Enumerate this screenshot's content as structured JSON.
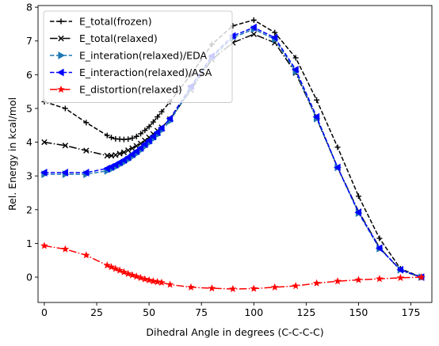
{
  "chart_data": {
    "type": "line",
    "title": "",
    "xlabel": "Dihedral Angle in degrees (C-C-C-C)",
    "ylabel": "Rel. Energy in kcal/mol",
    "xlim": [
      -3,
      185
    ],
    "ylim": [
      -0.75,
      8.05
    ],
    "xticks": [
      0,
      25,
      50,
      75,
      100,
      125,
      150,
      175
    ],
    "yticks": [
      0,
      1,
      2,
      3,
      4,
      5,
      6,
      7,
      8
    ],
    "grid": false,
    "legend_position": "upper-left",
    "series": [
      {
        "name": "E_total(frozen)",
        "color": "#000000",
        "linestyle": "dashed",
        "marker": "plus",
        "x": [
          0,
          10,
          20,
          30,
          32,
          34,
          36,
          38,
          40,
          42,
          44,
          46,
          48,
          50,
          52,
          54,
          56,
          60,
          70,
          80,
          90,
          100,
          110,
          120,
          130,
          140,
          150,
          160,
          170,
          180
        ],
        "y": [
          5.2,
          5.0,
          4.58,
          4.2,
          4.14,
          4.1,
          4.09,
          4.08,
          4.09,
          4.12,
          4.17,
          4.25,
          4.35,
          4.46,
          4.6,
          4.75,
          4.9,
          5.2,
          6.0,
          6.9,
          7.45,
          7.62,
          7.25,
          6.5,
          5.25,
          3.85,
          2.4,
          1.15,
          0.25,
          0.0
        ]
      },
      {
        "name": "E_total(relaxed)",
        "color": "#000000",
        "linestyle": "dashdot",
        "marker": "x",
        "x": [
          0,
          10,
          20,
          30,
          32,
          34,
          36,
          38,
          40,
          42,
          44,
          46,
          48,
          50,
          52,
          54,
          56,
          60,
          70,
          80,
          90,
          100,
          110,
          120,
          130,
          140,
          150,
          160,
          170,
          180
        ],
        "y": [
          4.0,
          3.9,
          3.75,
          3.6,
          3.6,
          3.62,
          3.66,
          3.7,
          3.76,
          3.82,
          3.89,
          3.96,
          4.05,
          4.14,
          4.24,
          4.34,
          4.44,
          4.68,
          5.55,
          6.45,
          6.95,
          7.2,
          6.95,
          6.05,
          4.7,
          3.25,
          1.95,
          0.88,
          0.2,
          0.0
        ]
      },
      {
        "name": "E_interation(relaxed)/EDA",
        "color": "#1f77b4",
        "linestyle": "dashed",
        "marker": "triangle-right",
        "x": [
          0,
          10,
          20,
          30,
          32,
          34,
          36,
          38,
          40,
          42,
          44,
          46,
          48,
          50,
          52,
          54,
          56,
          60,
          70,
          80,
          90,
          100,
          110,
          120,
          130,
          140,
          150,
          160,
          170,
          180
        ],
        "y": [
          3.05,
          3.05,
          3.05,
          3.15,
          3.2,
          3.26,
          3.33,
          3.4,
          3.48,
          3.57,
          3.66,
          3.76,
          3.87,
          3.98,
          4.1,
          4.22,
          4.35,
          4.63,
          5.6,
          6.5,
          7.1,
          7.35,
          7.05,
          6.1,
          4.7,
          3.25,
          1.9,
          0.85,
          0.22,
          0.0
        ]
      },
      {
        "name": "E_interaction(relaxed)/ASA",
        "color": "#0000ff",
        "linestyle": "dashed",
        "marker": "triangle-left",
        "x": [
          0,
          10,
          20,
          30,
          32,
          34,
          36,
          38,
          40,
          42,
          44,
          46,
          48,
          50,
          52,
          54,
          56,
          60,
          70,
          80,
          90,
          100,
          110,
          120,
          130,
          140,
          150,
          160,
          170,
          180
        ],
        "y": [
          3.1,
          3.1,
          3.1,
          3.22,
          3.27,
          3.33,
          3.4,
          3.47,
          3.55,
          3.64,
          3.73,
          3.83,
          3.94,
          4.05,
          4.17,
          4.29,
          4.42,
          4.7,
          5.65,
          6.55,
          7.15,
          7.4,
          7.1,
          6.15,
          4.75,
          3.25,
          1.92,
          0.86,
          0.22,
          0.0
        ]
      },
      {
        "name": "E_distortion(relaxed)",
        "color": "#ff0000",
        "linestyle": "dashdot",
        "marker": "star",
        "x": [
          0,
          10,
          20,
          30,
          32,
          34,
          36,
          38,
          40,
          42,
          44,
          46,
          48,
          50,
          52,
          54,
          56,
          60,
          70,
          80,
          90,
          100,
          110,
          120,
          130,
          140,
          150,
          160,
          170,
          180
        ],
        "y": [
          0.93,
          0.83,
          0.65,
          0.35,
          0.3,
          0.25,
          0.2,
          0.15,
          0.1,
          0.06,
          0.02,
          -0.02,
          -0.06,
          -0.09,
          -0.12,
          -0.14,
          -0.16,
          -0.22,
          -0.3,
          -0.33,
          -0.35,
          -0.34,
          -0.3,
          -0.26,
          -0.18,
          -0.12,
          -0.08,
          -0.05,
          -0.02,
          0.0
        ]
      }
    ]
  }
}
